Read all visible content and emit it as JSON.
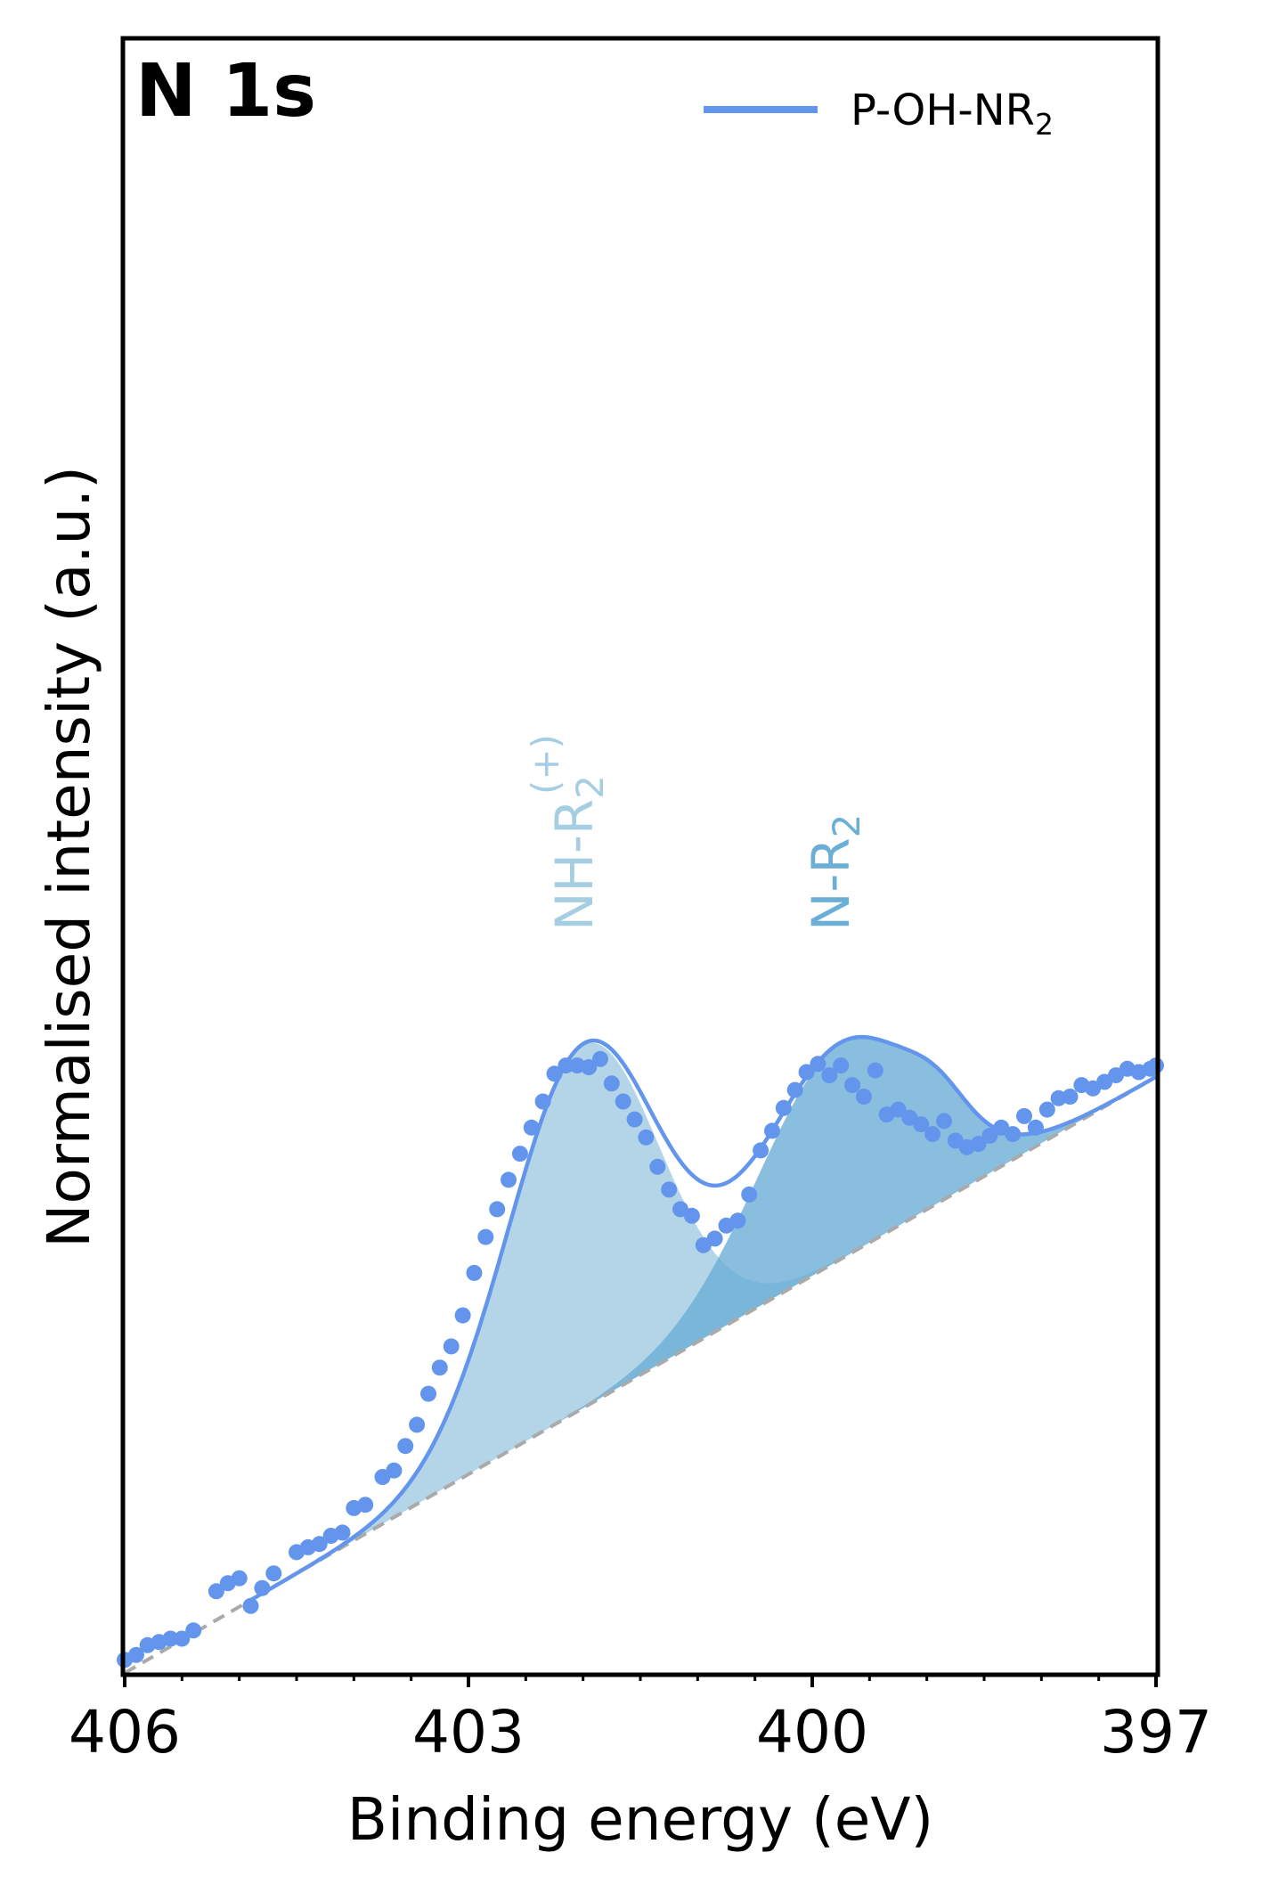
{
  "chart_data": {
    "type": "line",
    "title": "N 1s",
    "xlabel": "Binding energy (eV)",
    "ylabel": "Normalised intensity (a.u.)",
    "xlim": [
      406,
      397
    ],
    "ylim": [
      0,
      1
    ],
    "x_reversed": true,
    "grid": false,
    "legend_position": "top-right",
    "x_ticks": [
      406,
      403,
      400,
      397
    ],
    "x_tick_labels": [
      "406",
      "403",
      "400",
      "397"
    ],
    "y_ticks_shown": false,
    "colors": {
      "series": "#6495ED",
      "peak_nh": "#A6CEE3",
      "peak_n": "#6BAED6",
      "background": "#AAAAAA",
      "axes": "#000000"
    },
    "series": [
      {
        "name": "P-OH-NR2",
        "legend_label": "P-OH-NR",
        "legend_subscript": "2",
        "style": "markers+fit",
        "points": [
          [
            406.0,
            0.008
          ],
          [
            405.9,
            0.011
          ],
          [
            405.8,
            0.017
          ],
          [
            405.7,
            0.019
          ],
          [
            405.6,
            0.021
          ],
          [
            405.5,
            0.021
          ],
          [
            405.4,
            0.026
          ],
          [
            405.2,
            0.05
          ],
          [
            405.1,
            0.055
          ],
          [
            405.0,
            0.058
          ],
          [
            404.9,
            0.041
          ],
          [
            404.8,
            0.052
          ],
          [
            404.7,
            0.061
          ],
          [
            404.5,
            0.074
          ],
          [
            404.4,
            0.077
          ],
          [
            404.3,
            0.079
          ],
          [
            404.2,
            0.084
          ],
          [
            404.1,
            0.086
          ],
          [
            404.0,
            0.101
          ],
          [
            403.9,
            0.103
          ],
          [
            403.75,
            0.12
          ],
          [
            403.65,
            0.124
          ],
          [
            403.55,
            0.139
          ],
          [
            403.45,
            0.152
          ],
          [
            403.35,
            0.171
          ],
          [
            403.25,
            0.187
          ],
          [
            403.15,
            0.2
          ],
          [
            403.05,
            0.219
          ],
          [
            402.95,
            0.245
          ],
          [
            402.85,
            0.267
          ],
          [
            402.75,
            0.284
          ],
          [
            402.65,
            0.302
          ],
          [
            402.55,
            0.318
          ],
          [
            402.45,
            0.334
          ],
          [
            402.35,
            0.35
          ],
          [
            402.25,
            0.367
          ],
          [
            402.15,
            0.372
          ],
          [
            402.05,
            0.372
          ],
          [
            401.95,
            0.371
          ],
          [
            401.85,
            0.376
          ],
          [
            401.75,
            0.361
          ],
          [
            401.65,
            0.35
          ],
          [
            401.55,
            0.339
          ],
          [
            401.45,
            0.328
          ],
          [
            401.35,
            0.31
          ],
          [
            401.25,
            0.296
          ],
          [
            401.15,
            0.284
          ],
          [
            401.05,
            0.28
          ],
          [
            400.95,
            0.262
          ],
          [
            400.85,
            0.266
          ],
          [
            400.75,
            0.274
          ],
          [
            400.65,
            0.277
          ],
          [
            400.55,
            0.293
          ],
          [
            400.45,
            0.32
          ],
          [
            400.35,
            0.332
          ],
          [
            400.25,
            0.346
          ],
          [
            400.15,
            0.357
          ],
          [
            400.05,
            0.368
          ],
          [
            399.95,
            0.373
          ],
          [
            399.85,
            0.366
          ],
          [
            399.75,
            0.372
          ],
          [
            399.65,
            0.36
          ],
          [
            399.55,
            0.353
          ],
          [
            399.45,
            0.369
          ],
          [
            399.35,
            0.342
          ],
          [
            399.25,
            0.345
          ],
          [
            399.15,
            0.34
          ],
          [
            399.05,
            0.336
          ],
          [
            398.95,
            0.33
          ],
          [
            398.85,
            0.338
          ],
          [
            398.75,
            0.326
          ],
          [
            398.65,
            0.322
          ],
          [
            398.55,
            0.324
          ],
          [
            398.45,
            0.329
          ],
          [
            398.35,
            0.334
          ],
          [
            398.25,
            0.33
          ],
          [
            398.15,
            0.341
          ],
          [
            398.05,
            0.334
          ],
          [
            397.95,
            0.345
          ],
          [
            397.85,
            0.352
          ],
          [
            397.75,
            0.353
          ],
          [
            397.65,
            0.36
          ],
          [
            397.55,
            0.358
          ],
          [
            397.45,
            0.362
          ],
          [
            397.35,
            0.366
          ],
          [
            397.25,
            0.37
          ],
          [
            397.15,
            0.368
          ],
          [
            397.05,
            0.37
          ],
          [
            397.0,
            0.372
          ]
        ]
      }
    ],
    "fit_model": {
      "background": {
        "x0": 406.0,
        "y0": 0.0,
        "x1": 397.0,
        "y1": 0.365
      },
      "peaks": [
        {
          "name": "NH-R2(+)",
          "label_main": "NH-R",
          "label_sub": "2",
          "label_sup": "(+)",
          "center": 402.0,
          "fwhm": 1.55,
          "height": 0.222,
          "color": "#A6CEE3"
        },
        {
          "name": "N-R2",
          "label_main": "N-R",
          "label_sub": "2",
          "center": 399.75,
          "fwhm": 1.7,
          "height": 0.132,
          "color": "#6BAED6"
        },
        {
          "center": 398.9,
          "fwhm": 0.6,
          "height": 0.016,
          "color": "#6BAED6"
        }
      ]
    }
  }
}
